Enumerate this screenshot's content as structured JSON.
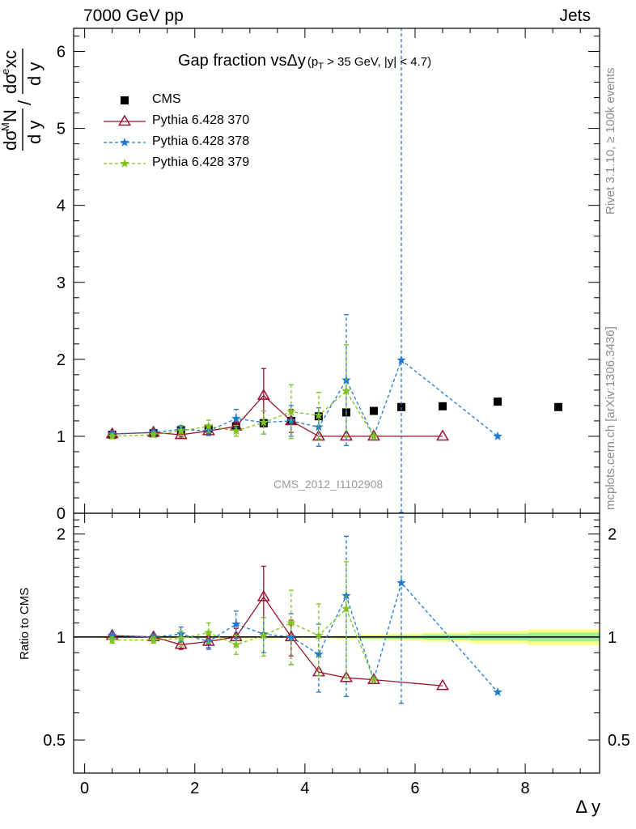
{
  "header": {
    "left": "7000 GeV pp",
    "right": "Jets"
  },
  "title": {
    "main": "Gap fraction vsΔy",
    "cut_p": "(p",
    "cut_sub": "T",
    "cut_rest": " > 35 GeV, |y| < 4.7)"
  },
  "side_texts": {
    "rivet": "Rivet 3.1.10, ≥ 100k events",
    "mcplots": "mcplots.cern.ch [arXiv:1306.3436]"
  },
  "analysis_name": "CMS_2012_I1102908",
  "chart_data": [
    {
      "type": "scatter",
      "panel": "main",
      "ylabel": "dσM N / d y  /  dσe xc / d y",
      "ylim": [
        0,
        6.3
      ],
      "xlim": [
        -0.2,
        9.35
      ],
      "yticks": [
        0,
        1,
        2,
        3,
        4,
        5,
        6
      ],
      "legend_position": "top-left",
      "series": [
        {
          "name": "CMS",
          "color": "#000000",
          "marker": "square",
          "x": [
            0.5,
            1.25,
            1.75,
            2.25,
            2.75,
            3.25,
            3.75,
            4.25,
            4.75,
            5.25,
            5.75,
            6.5,
            7.5,
            8.6
          ],
          "y": [
            1.02,
            1.04,
            1.08,
            1.1,
            1.13,
            1.17,
            1.2,
            1.26,
            1.31,
            1.33,
            1.38,
            1.39,
            1.45,
            1.38
          ]
        },
        {
          "name": "Pythia 6.428 370",
          "color": "#99142f",
          "marker": "triangle",
          "line": "solid",
          "x": [
            0.5,
            1.25,
            1.75,
            2.25,
            2.75,
            3.25,
            3.75,
            4.25,
            4.75,
            5.25,
            6.5
          ],
          "y": [
            1.03,
            1.05,
            1.02,
            1.07,
            1.13,
            1.53,
            1.2,
            1.0,
            1.0,
            1.0,
            1.0
          ],
          "err": [
            0.02,
            0.02,
            0.03,
            0.04,
            0.06,
            0.35,
            0.15,
            0.0,
            0.0,
            0.0,
            0.0
          ]
        },
        {
          "name": "Pythia 6.428 378",
          "color": "#1f78d1",
          "marker": "star",
          "line": "dashed",
          "x": [
            0.5,
            1.25,
            1.75,
            2.25,
            2.75,
            3.25,
            3.75,
            4.25,
            4.75,
            5.25,
            5.75,
            7.5
          ],
          "y": [
            1.03,
            1.05,
            1.09,
            1.07,
            1.23,
            1.18,
            1.2,
            1.12,
            1.73,
            1.0,
            1.99,
            1.0
          ],
          "err": [
            0.03,
            0.03,
            0.05,
            0.06,
            0.12,
            0.15,
            0.2,
            0.25,
            0.85,
            0.0,
            4.5,
            0.0
          ]
        },
        {
          "name": "Pythia 6.428 379",
          "color": "#7fc31c",
          "marker": "star",
          "line": "dashed",
          "x": [
            0.5,
            1.25,
            1.75,
            2.25,
            2.75,
            3.25,
            3.75,
            4.25,
            4.75,
            5.25
          ],
          "y": [
            1.0,
            1.02,
            1.07,
            1.13,
            1.07,
            1.18,
            1.32,
            1.27,
            1.59,
            1.0
          ],
          "err": [
            0.03,
            0.03,
            0.06,
            0.08,
            0.07,
            0.15,
            0.35,
            0.3,
            0.6,
            0.0
          ]
        }
      ]
    },
    {
      "type": "scatter",
      "panel": "ratio",
      "ylabel": "Ratio to CMS",
      "xlabel": "Δ y",
      "ylim": [
        0.4,
        2.3
      ],
      "yticks": [
        0.5,
        1,
        2
      ],
      "ytick_labels": [
        "0.5",
        "1",
        "2"
      ],
      "xticks": [
        0,
        2,
        4,
        6,
        8
      ],
      "xtick_labels": [
        "0",
        "2",
        "4",
        "6",
        "8"
      ],
      "band_colors": [
        "#ffff88",
        "#99ee99"
      ],
      "series": [
        {
          "name": "Pythia 6.428 370",
          "color": "#99142f",
          "marker": "triangle",
          "line": "solid",
          "x": [
            0.5,
            1.25,
            1.75,
            2.25,
            2.75,
            3.25,
            3.75,
            4.25,
            4.75,
            5.25,
            6.5
          ],
          "y": [
            1.01,
            1.0,
            0.95,
            0.97,
            1.0,
            1.31,
            1.0,
            0.79,
            0.76,
            0.75,
            0.72
          ],
          "err": [
            0.02,
            0.02,
            0.03,
            0.04,
            0.06,
            0.3,
            0.12,
            0.0,
            0.0,
            0.0,
            0.0
          ]
        },
        {
          "name": "Pythia 6.428 378",
          "color": "#1f78d1",
          "marker": "star",
          "line": "dashed",
          "x": [
            0.5,
            1.25,
            1.75,
            2.25,
            2.75,
            3.25,
            3.75,
            4.25,
            4.75,
            5.25,
            5.75,
            7.5
          ],
          "y": [
            1.01,
            1.0,
            1.02,
            0.97,
            1.09,
            1.02,
            1.0,
            0.89,
            1.32,
            0.75,
            1.44,
            0.69
          ],
          "err": [
            0.02,
            0.02,
            0.05,
            0.05,
            0.1,
            0.12,
            0.17,
            0.2,
            0.65,
            0.0,
            0.8,
            0.0
          ]
        },
        {
          "name": "Pythia 6.428 379",
          "color": "#7fc31c",
          "marker": "star",
          "line": "dashed",
          "x": [
            0.5,
            1.25,
            1.75,
            2.25,
            2.75,
            3.25,
            3.75,
            4.25,
            4.75,
            5.25
          ],
          "y": [
            0.98,
            0.98,
            0.99,
            1.03,
            0.95,
            1.01,
            1.1,
            1.01,
            1.21,
            0.75
          ],
          "err": [
            0.02,
            0.02,
            0.05,
            0.07,
            0.06,
            0.13,
            0.27,
            0.24,
            0.45,
            0.0
          ]
        }
      ]
    }
  ]
}
